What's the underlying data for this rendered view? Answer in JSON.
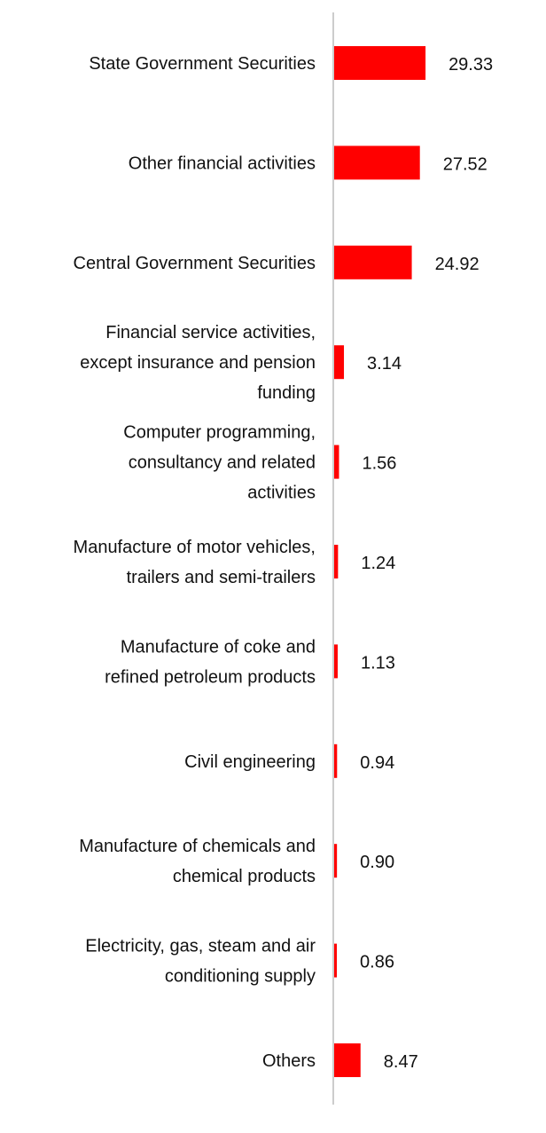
{
  "chart_data": {
    "type": "bar",
    "orientation": "horizontal",
    "title": "",
    "xlabel": "",
    "ylabel": "",
    "grid": false,
    "legend": "none",
    "bar_color": "#ff0000",
    "axis_color": "#cccccc",
    "xlim": [
      0,
      35
    ],
    "categories": [
      [
        "State Government Securities"
      ],
      [
        "Other financial activities"
      ],
      [
        "Central Government Securities"
      ],
      [
        "Financial service activities,",
        "except insurance and pension",
        "funding"
      ],
      [
        "Computer programming,",
        "consultancy and related",
        "activities"
      ],
      [
        "Manufacture of motor vehicles,",
        "trailers and semi-trailers"
      ],
      [
        "Manufacture of coke and",
        "refined petroleum products"
      ],
      [
        "Civil engineering"
      ],
      [
        "Manufacture of chemicals and",
        "chemical products"
      ],
      [
        "Electricity, gas, steam and air",
        "conditioning supply"
      ],
      [
        "Others"
      ]
    ],
    "values": [
      29.33,
      27.52,
      24.92,
      3.14,
      1.56,
      1.24,
      1.13,
      0.94,
      0.9,
      0.86,
      8.47
    ],
    "value_labels": [
      "29.33",
      "27.52",
      "24.92",
      "3.14",
      "1.56",
      "1.24",
      "1.13",
      "0.94",
      "0.90",
      "0.86",
      "8.47"
    ]
  }
}
